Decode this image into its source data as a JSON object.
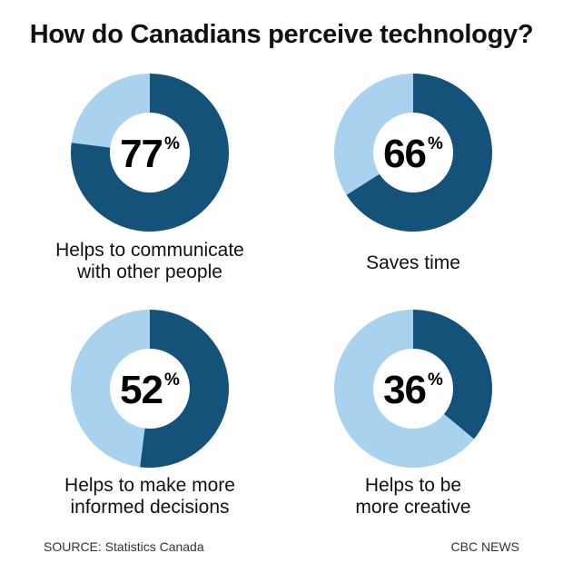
{
  "title": "How do Canadians perceive technology?",
  "colors": {
    "filled": "#15527a",
    "remaining": "#a8d2ee",
    "hole": "#ffffff"
  },
  "chart_data": [
    {
      "type": "pie",
      "values": [
        77,
        23
      ],
      "value_label": "77",
      "unit": "%",
      "caption": "Helps to communicate\nwith other people"
    },
    {
      "type": "pie",
      "values": [
        66,
        34
      ],
      "value_label": "66",
      "unit": "%",
      "caption": "Saves time"
    },
    {
      "type": "pie",
      "values": [
        52,
        48
      ],
      "value_label": "52",
      "unit": "%",
      "caption": "Helps to make more\ninformed decisions"
    },
    {
      "type": "pie",
      "values": [
        36,
        64
      ],
      "value_label": "36",
      "unit": "%",
      "caption": "Helps to be\nmore creative"
    }
  ],
  "footer": {
    "source": "SOURCE: Statistics Canada",
    "brand": "CBC NEWS"
  }
}
